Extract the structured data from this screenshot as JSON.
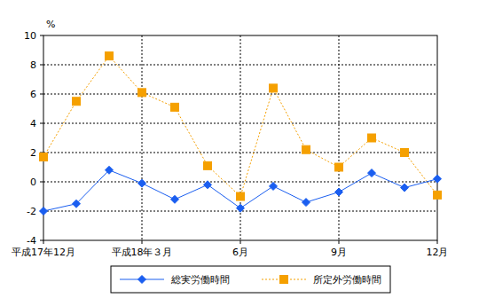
{
  "chart_data": {
    "type": "line",
    "y_label": "%",
    "categories": [
      "平成17年12月",
      null,
      null,
      "平成18年３月",
      null,
      null,
      "6月",
      null,
      null,
      "9月",
      null,
      null,
      "12月"
    ],
    "series": [
      {
        "name": "総実労働時間",
        "color": "#1a5ef0",
        "marker": "diamond",
        "line_style": "solid",
        "values": [
          -2.0,
          -1.5,
          0.8,
          -0.1,
          -1.2,
          -0.2,
          -1.8,
          -0.3,
          -1.4,
          -0.7,
          0.6,
          -0.4,
          0.2
        ]
      },
      {
        "name": "所定外労働時間",
        "color": "#f5a000",
        "marker": "square",
        "line_style": "dotted",
        "values": [
          1.7,
          5.5,
          8.6,
          6.1,
          5.1,
          1.1,
          -1.0,
          6.4,
          2.2,
          1.0,
          3.0,
          2.0,
          -0.9
        ]
      }
    ],
    "ylim": [
      -4,
      10
    ],
    "yticks": [
      -4,
      -2,
      0,
      2,
      4,
      6,
      8,
      10
    ],
    "grid": true,
    "legend": "bottom"
  }
}
